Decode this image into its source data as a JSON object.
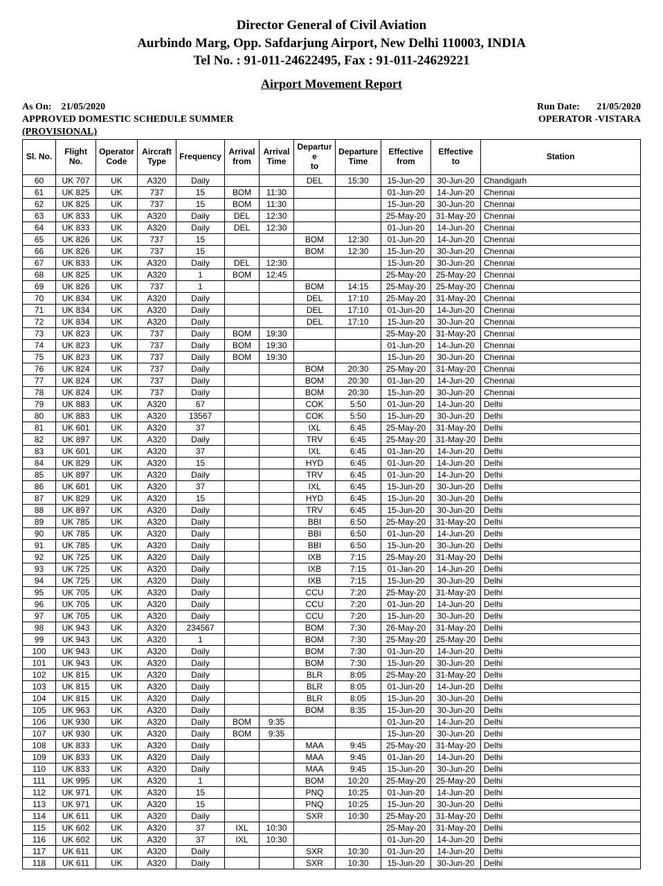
{
  "header": {
    "line1": "Director General of Civil Aviation",
    "line2": "Aurbindo Marg, Opp. Safdarjung Airport, New Delhi 110003, INDIA",
    "line3": "Tel No. :  91-011-24622495, Fax : 91-011-24629221",
    "report_title": "Airport Movement Report"
  },
  "meta": {
    "as_on_label": "As On:",
    "as_on_value": "21/05/2020",
    "run_date_label": "Run Date:",
    "run_date_value": "21/05/2020",
    "subtitle_line1": "APPROVED DOMESTIC SCHEDULE SUMMER",
    "subtitle_line2": "(PROVISIONAL)",
    "operator_label": "OPERATOR -VISTARA"
  },
  "columns": [
    "Sl. No.",
    "Flight\nNo.",
    "Operator\nCode",
    "Aircraft\nType",
    "Frequency",
    "Arrival\nfrom",
    "Arrival\nTime",
    "Departur\ne\nto",
    "Departure\nTime",
    "Effective\nfrom",
    "Effective\nto",
    "Station"
  ],
  "rows": [
    [
      "60",
      "UK 707",
      "UK",
      "A320",
      "Daily",
      "",
      "",
      "DEL",
      "15:30",
      "15-Jun-20",
      "30-Jun-20",
      "Chandigarh"
    ],
    [
      "61",
      "UK 825",
      "UK",
      "737",
      "15",
      "BOM",
      "11:30",
      "",
      "",
      "01-Jun-20",
      "14-Jun-20",
      "Chennai"
    ],
    [
      "62",
      "UK 825",
      "UK",
      "737",
      "15",
      "BOM",
      "11:30",
      "",
      "",
      "15-Jun-20",
      "30-Jun-20",
      "Chennai"
    ],
    [
      "63",
      "UK 833",
      "UK",
      "A320",
      "Daily",
      "DEL",
      "12:30",
      "",
      "",
      "25-May-20",
      "31-May-20",
      "Chennai"
    ],
    [
      "64",
      "UK 833",
      "UK",
      "A320",
      "Daily",
      "DEL",
      "12:30",
      "",
      "",
      "01-Jun-20",
      "14-Jun-20",
      "Chennai"
    ],
    [
      "65",
      "UK 826",
      "UK",
      "737",
      "15",
      "",
      "",
      "BOM",
      "12:30",
      "01-Jun-20",
      "14-Jun-20",
      "Chennai"
    ],
    [
      "66",
      "UK 826",
      "UK",
      "737",
      "15",
      "",
      "",
      "BOM",
      "12:30",
      "15-Jun-20",
      "30-Jun-20",
      "Chennai"
    ],
    [
      "67",
      "UK 833",
      "UK",
      "A320",
      "Daily",
      "DEL",
      "12:30",
      "",
      "",
      "15-Jun-20",
      "30-Jun-20",
      "Chennai"
    ],
    [
      "68",
      "UK 825",
      "UK",
      "A320",
      "1",
      "BOM",
      "12:45",
      "",
      "",
      "25-May-20",
      "25-May-20",
      "Chennai"
    ],
    [
      "69",
      "UK 826",
      "UK",
      "737",
      "1",
      "",
      "",
      "BOM",
      "14:15",
      "25-May-20",
      "25-May-20",
      "Chennai"
    ],
    [
      "70",
      "UK 834",
      "UK",
      "A320",
      "Daily",
      "",
      "",
      "DEL",
      "17:10",
      "25-May-20",
      "31-May-20",
      "Chennai"
    ],
    [
      "71",
      "UK 834",
      "UK",
      "A320",
      "Daily",
      "",
      "",
      "DEL",
      "17:10",
      "01-Jun-20",
      "14-Jun-20",
      "Chennai"
    ],
    [
      "72",
      "UK 834",
      "UK",
      "A320",
      "Daily",
      "",
      "",
      "DEL",
      "17:10",
      "15-Jun-20",
      "30-Jun-20",
      "Chennai"
    ],
    [
      "73",
      "UK 823",
      "UK",
      "737",
      "Daily",
      "BOM",
      "19:30",
      "",
      "",
      "25-May-20",
      "31-May-20",
      "Chennai"
    ],
    [
      "74",
      "UK 823",
      "UK",
      "737",
      "Daily",
      "BOM",
      "19:30",
      "",
      "",
      "01-Jun-20",
      "14-Jun-20",
      "Chennai"
    ],
    [
      "75",
      "UK 823",
      "UK",
      "737",
      "Daily",
      "BOM",
      "19:30",
      "",
      "",
      "15-Jun-20",
      "30-Jun-20",
      "Chennai"
    ],
    [
      "76",
      "UK 824",
      "UK",
      "737",
      "Daily",
      "",
      "",
      "BOM",
      "20:30",
      "25-May-20",
      "31-May-20",
      "Chennai"
    ],
    [
      "77",
      "UK 824",
      "UK",
      "737",
      "Daily",
      "",
      "",
      "BOM",
      "20:30",
      "01-Jan-20",
      "14-Jun-20",
      "Chennai"
    ],
    [
      "78",
      "UK 824",
      "UK",
      "737",
      "Daily",
      "",
      "",
      "BOM",
      "20:30",
      "15-Jun-20",
      "30-Jun-20",
      "Chennai"
    ],
    [
      "79",
      "UK 883",
      "UK",
      "A320",
      "67",
      "",
      "",
      "COK",
      "5:50",
      "01-Jun-20",
      "14-Jun-20",
      "Delhi"
    ],
    [
      "80",
      "UK 883",
      "UK",
      "A320",
      "13567",
      "",
      "",
      "COK",
      "5:50",
      "15-Jun-20",
      "30-Jun-20",
      "Delhi"
    ],
    [
      "81",
      "UK 601",
      "UK",
      "A320",
      "37",
      "",
      "",
      "IXL",
      "6:45",
      "25-May-20",
      "31-May-20",
      "Delhi"
    ],
    [
      "82",
      "UK 897",
      "UK",
      "A320",
      "Daily",
      "",
      "",
      "TRV",
      "6:45",
      "25-May-20",
      "31-May-20",
      "Delhi"
    ],
    [
      "83",
      "UK 601",
      "UK",
      "A320",
      "37",
      "",
      "",
      "IXL",
      "6:45",
      "01-Jan-20",
      "14-Jun-20",
      "Delhi"
    ],
    [
      "84",
      "UK 829",
      "UK",
      "A320",
      "15",
      "",
      "",
      "HYD",
      "6:45",
      "01-Jun-20",
      "14-Jun-20",
      "Delhi"
    ],
    [
      "85",
      "UK 897",
      "UK",
      "A320",
      "Daily",
      "",
      "",
      "TRV",
      "6:45",
      "01-Jun-20",
      "14-Jun-20",
      "Delhi"
    ],
    [
      "86",
      "UK 601",
      "UK",
      "A320",
      "37",
      "",
      "",
      "IXL",
      "6:45",
      "15-Jun-20",
      "30-Jun-20",
      "Delhi"
    ],
    [
      "87",
      "UK 829",
      "UK",
      "A320",
      "15",
      "",
      "",
      "HYD",
      "6:45",
      "15-Jun-20",
      "30-Jun-20",
      "Delhi"
    ],
    [
      "88",
      "UK 897",
      "UK",
      "A320",
      "Daily",
      "",
      "",
      "TRV",
      "6:45",
      "15-Jun-20",
      "30-Jun-20",
      "Delhi"
    ],
    [
      "89",
      "UK 785",
      "UK",
      "A320",
      "Daily",
      "",
      "",
      "BBI",
      "6:50",
      "25-May-20",
      "31-May-20",
      "Delhi"
    ],
    [
      "90",
      "UK 785",
      "UK",
      "A320",
      "Daily",
      "",
      "",
      "BBI",
      "6:50",
      "01-Jun-20",
      "14-Jun-20",
      "Delhi"
    ],
    [
      "91",
      "UK 785",
      "UK",
      "A320",
      "Daily",
      "",
      "",
      "BBI",
      "6:50",
      "15-Jun-20",
      "30-Jun-20",
      "Delhi"
    ],
    [
      "92",
      "UK 725",
      "UK",
      "A320",
      "Daily",
      "",
      "",
      "IXB",
      "7:15",
      "25-May-20",
      "31-May-20",
      "Delhi"
    ],
    [
      "93",
      "UK 725",
      "UK",
      "A320",
      "Daily",
      "",
      "",
      "IXB",
      "7:15",
      "01-Jan-20",
      "14-Jun-20",
      "Delhi"
    ],
    [
      "94",
      "UK 725",
      "UK",
      "A320",
      "Daily",
      "",
      "",
      "IXB",
      "7:15",
      "15-Jun-20",
      "30-Jun-20",
      "Delhi"
    ],
    [
      "95",
      "UK 705",
      "UK",
      "A320",
      "Daily",
      "",
      "",
      "CCU",
      "7:20",
      "25-May-20",
      "31-May-20",
      "Delhi"
    ],
    [
      "96",
      "UK 705",
      "UK",
      "A320",
      "Daily",
      "",
      "",
      "CCU",
      "7:20",
      "01-Jun-20",
      "14-Jun-20",
      "Delhi"
    ],
    [
      "97",
      "UK 705",
      "UK",
      "A320",
      "Daily",
      "",
      "",
      "CCU",
      "7:20",
      "15-Jun-20",
      "30-Jun-20",
      "Delhi"
    ],
    [
      "98",
      "UK 943",
      "UK",
      "A320",
      "234567",
      "",
      "",
      "BOM",
      "7:30",
      "26-May-20",
      "31-May-20",
      "Delhi"
    ],
    [
      "99",
      "UK 943",
      "UK",
      "A320",
      "1",
      "",
      "",
      "BOM",
      "7:30",
      "25-May-20",
      "25-May-20",
      "Delhi"
    ],
    [
      "100",
      "UK 943",
      "UK",
      "A320",
      "Daily",
      "",
      "",
      "BOM",
      "7:30",
      "01-Jun-20",
      "14-Jun-20",
      "Delhi"
    ],
    [
      "101",
      "UK 943",
      "UK",
      "A320",
      "Daily",
      "",
      "",
      "BOM",
      "7:30",
      "15-Jun-20",
      "30-Jun-20",
      "Delhi"
    ],
    [
      "102",
      "UK 815",
      "UK",
      "A320",
      "Daily",
      "",
      "",
      "BLR",
      "8:05",
      "25-May-20",
      "31-May-20",
      "Delhi"
    ],
    [
      "103",
      "UK 815",
      "UK",
      "A320",
      "Daily",
      "",
      "",
      "BLR",
      "8:05",
      "01-Jun-20",
      "14-Jun-20",
      "Delhi"
    ],
    [
      "104",
      "UK 815",
      "UK",
      "A320",
      "Daily",
      "",
      "",
      "BLR",
      "8:05",
      "15-Jun-20",
      "30-Jun-20",
      "Delhi"
    ],
    [
      "105",
      "UK 963",
      "UK",
      "A320",
      "Daily",
      "",
      "",
      "BOM",
      "8:35",
      "15-Jun-20",
      "30-Jun-20",
      "Delhi"
    ],
    [
      "106",
      "UK 930",
      "UK",
      "A320",
      "Daily",
      "BOM",
      "9:35",
      "",
      "",
      "01-Jun-20",
      "14-Jun-20",
      "Delhi"
    ],
    [
      "107",
      "UK 930",
      "UK",
      "A320",
      "Daily",
      "BOM",
      "9:35",
      "",
      "",
      "15-Jun-20",
      "30-Jun-20",
      "Delhi"
    ],
    [
      "108",
      "UK 833",
      "UK",
      "A320",
      "Daily",
      "",
      "",
      "MAA",
      "9:45",
      "25-May-20",
      "31-May-20",
      "Delhi"
    ],
    [
      "109",
      "UK 833",
      "UK",
      "A320",
      "Daily",
      "",
      "",
      "MAA",
      "9:45",
      "01-Jan-20",
      "14-Jun-20",
      "Delhi"
    ],
    [
      "110",
      "UK 833",
      "UK",
      "A320",
      "Daily",
      "",
      "",
      "MAA",
      "9:45",
      "15-Jun-20",
      "30-Jun-20",
      "Delhi"
    ],
    [
      "111",
      "UK 995",
      "UK",
      "A320",
      "1",
      "",
      "",
      "BOM",
      "10:20",
      "25-May-20",
      "25-May-20",
      "Delhi"
    ],
    [
      "112",
      "UK 971",
      "UK",
      "A320",
      "15",
      "",
      "",
      "PNQ",
      "10:25",
      "01-Jun-20",
      "14-Jun-20",
      "Delhi"
    ],
    [
      "113",
      "UK 971",
      "UK",
      "A320",
      "15",
      "",
      "",
      "PNQ",
      "10:25",
      "15-Jun-20",
      "30-Jun-20",
      "Delhi"
    ],
    [
      "114",
      "UK 611",
      "UK",
      "A320",
      "Daily",
      "",
      "",
      "SXR",
      "10:30",
      "25-May-20",
      "31-May-20",
      "Delhi"
    ],
    [
      "115",
      "UK 602",
      "UK",
      "A320",
      "37",
      "IXL",
      "10:30",
      "",
      "",
      "25-May-20",
      "31-May-20",
      "Delhi"
    ],
    [
      "116",
      "UK 602",
      "UK",
      "A320",
      "37",
      "IXL",
      "10:30",
      "",
      "",
      "01-Jun-20",
      "14-Jun-20",
      "Delhi"
    ],
    [
      "117",
      "UK 611",
      "UK",
      "A320",
      "Daily",
      "",
      "",
      "SXR",
      "10:30",
      "01-Jun-20",
      "14-Jun-20",
      "Delhi"
    ],
    [
      "118",
      "UK 611",
      "UK",
      "A320",
      "Daily",
      "",
      "",
      "SXR",
      "10:30",
      "15-Jun-20",
      "30-Jun-20",
      "Delhi"
    ]
  ]
}
